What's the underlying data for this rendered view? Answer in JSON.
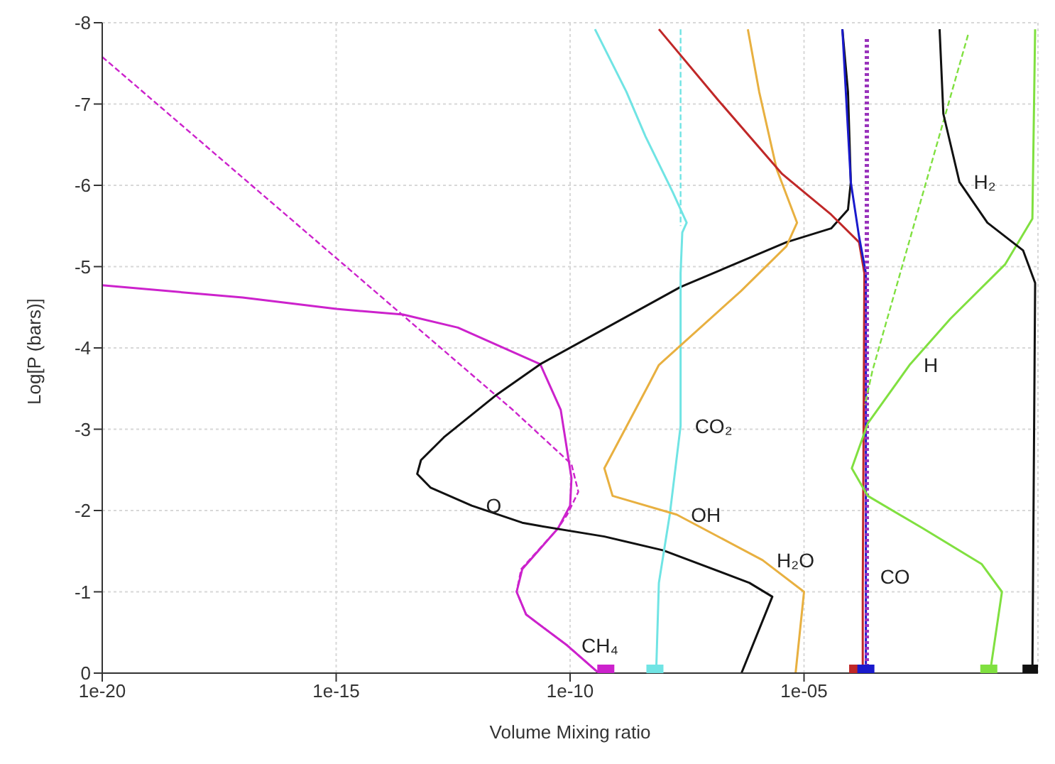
{
  "chart_data": {
    "type": "line",
    "xlabel": "Volume Mixing ratio",
    "ylabel": "Log[P (bars)]",
    "log": "x",
    "grid": true,
    "marker": "none",
    "xlim": [
      1e-20,
      1
    ],
    "xticks": [
      {
        "value": 1e-20,
        "label": "1e-20"
      },
      {
        "value": 1e-15,
        "label": "1e-15"
      },
      {
        "value": 1e-10,
        "label": "1e-10"
      },
      {
        "value": 1e-05,
        "label": "1e-05"
      }
    ],
    "ylim": [
      0,
      -8
    ],
    "yticks": [
      0,
      -1,
      -2,
      -3,
      -4,
      -5,
      -6,
      -7,
      -8
    ],
    "series": [
      {
        "color": "#cc22cc",
        "line_style": "solid",
        "x": [
          1e-20,
          1e-17,
          1e-15,
          2.7e-14,
          4e-13,
          2.3e-11,
          6.3e-11,
          1.07e-10,
          1e-10,
          5.5e-11,
          9.5e-12,
          7.2e-12,
          1.15e-11,
          8.7e-11,
          4.1e-10
        ],
        "values": [
          -4.77,
          -4.62,
          -4.48,
          -4.41,
          -4.25,
          -3.8,
          -3.24,
          -2.4,
          -2.06,
          -1.78,
          -1.28,
          -1.0,
          -0.72,
          -0.34,
          0
        ]
      },
      {
        "color": "#cc22cc",
        "line_style": "dashed",
        "x": [
          1e-20,
          5.9e-12,
          1.07e-10,
          1.5e-10,
          8.7e-11,
          5.5e-11,
          9e-12,
          7.2e-12,
          1.15e-11,
          8.7e-11,
          4.1e-10
        ],
        "values": [
          -7.58,
          -3.24,
          -2.57,
          -2.23,
          -1.95,
          -1.78,
          -1.28,
          -1.0,
          -0.72,
          -0.34,
          0
        ]
      },
      {
        "color": "#111111",
        "line_style": "solid",
        "x": [
          4.6e-07,
          2.1e-06,
          6.8e-07,
          9.8e-09,
          5.4e-10,
          2.3e-11,
          9.5e-12,
          7.9e-13,
          1.05e-13,
          5.4e-14,
          6.5e-14,
          2e-13,
          2.5e-12,
          2.3e-11,
          2.3e-08,
          4.2e-06,
          3.8e-05,
          8.7e-05,
          0.0001,
          8.7e-05,
          6.6e-05
        ],
        "values": [
          0,
          -0.94,
          -1.11,
          -1.51,
          -1.68,
          -1.81,
          -1.85,
          -2.06,
          -2.28,
          -2.45,
          -2.62,
          -2.9,
          -3.41,
          -3.8,
          -4.75,
          -5.3,
          -5.47,
          -5.7,
          -6.04,
          -7.15,
          -7.92
        ]
      },
      {
        "color": "#70e4e4",
        "line_style": "solid",
        "x": [
          3.4e-10,
          1.6e-09,
          4.1e-09,
          1.55e-08,
          3.1e-08,
          2.5e-08,
          2.3e-08,
          2.3e-08,
          1.35e-08,
          7.9e-09,
          6.9e-09
        ],
        "values": [
          -7.92,
          -7.15,
          -6.6,
          -5.92,
          -5.54,
          -5.42,
          -4.92,
          -3.04,
          -1.95,
          -1.11,
          0
        ]
      },
      {
        "color": "#70e4e4",
        "line_style": "dashed",
        "x": [
          2.3e-08,
          2.3e-08
        ],
        "values": [
          -7.92,
          -5.5
        ]
      },
      {
        "color": "#e8b040",
        "line_style": "solid",
        "x": [
          6.3e-07,
          1.1e-06,
          2.6e-06,
          7.1e-06,
          4.2e-06,
          4.5e-07,
          7.9e-09,
          5e-09,
          5.4e-10,
          8.1e-10,
          1.9e-08,
          1.3e-06,
          1e-05,
          6.6e-06
        ],
        "values": [
          -7.92,
          -7.15,
          -6.2,
          -5.54,
          -5.25,
          -4.7,
          -3.79,
          -3.57,
          -2.52,
          -2.18,
          -1.95,
          -1.39,
          -1.0,
          0
        ]
      },
      {
        "color": "#c02828",
        "line_style": "solid",
        "x": [
          7.9e-09,
          1.45e-07,
          3.4e-06,
          3.8e-05,
          0.00015,
          0.000195,
          0.00018,
          0.00018
        ],
        "values": [
          -7.92,
          -7.05,
          -6.14,
          -5.64,
          -5.3,
          -4.92,
          -1.0,
          0
        ]
      },
      {
        "color": "#1a1acc",
        "line_style": "solid",
        "x": [
          6.6e-05,
          0.0001,
          0.00015,
          0.00021,
          0.00021,
          0.00021
        ],
        "values": [
          -7.92,
          -6.04,
          -5.37,
          -4.92,
          -1.19,
          0
        ]
      },
      {
        "color": "#9933bb",
        "line_style": "dotted",
        "x": [
          0.00022,
          0.00022
        ],
        "values": [
          -7.8,
          0
        ]
      },
      {
        "color": "#80e040",
        "line_style": "solid",
        "x": [
          0.87,
          0.76,
          0.2,
          0.0135,
          0.0018,
          0.00023,
          0.000105,
          0.00023,
          0.0035,
          0.063,
          0.17,
          0.1,
          0.09
        ],
        "values": [
          -7.92,
          -5.59,
          -5.03,
          -4.36,
          -3.79,
          -3.07,
          -2.52,
          -2.18,
          -1.78,
          -1.34,
          -1.0,
          -0.1,
          0
        ]
      },
      {
        "color": "#80e040",
        "line_style": "dashed",
        "x": [
          0.032,
          0.00029,
          0.0002
        ],
        "values": [
          -7.85,
          -3.72,
          -3.3
        ]
      },
      {
        "color": "#111111",
        "line_style": "solid",
        "x": [
          0.0079,
          0.0095,
          0.021,
          0.083,
          0.48,
          0.87,
          0.76
        ],
        "values": [
          -7.92,
          -6.88,
          -6.04,
          -5.54,
          -5.2,
          -4.8,
          0
        ]
      },
      {
        "type": "scatter",
        "marker": "square",
        "x": [
          5.8e-10,
          6.5e-09,
          0.00014,
          0.00021,
          0.089,
          0.71
        ],
        "values": [
          0,
          0,
          0,
          0,
          0,
          0
        ],
        "colors": [
          "#cc22cc",
          "#70e4e4",
          "#c02828",
          "#1a1acc",
          "#80e040",
          "#111111"
        ]
      }
    ],
    "annotations": [
      {
        "text": "O",
        "x": 7.9e-13,
        "y": -2.06
      },
      {
        "text": "CH₄",
        "x": 8.7e-11,
        "y": -0.34
      },
      {
        "text": "CO₂",
        "x": 2.3e-08,
        "y": -3.04
      },
      {
        "text": "OH",
        "x": 1.9e-08,
        "y": -1.95
      },
      {
        "text": "H₂O",
        "x": 1.3e-06,
        "y": -1.39
      },
      {
        "text": "CO",
        "x": 0.00021,
        "y": -1.19
      },
      {
        "text": "H",
        "x": 0.0018,
        "y": -3.79
      },
      {
        "text": "H₂",
        "x": 0.021,
        "y": -6.04
      }
    ]
  }
}
